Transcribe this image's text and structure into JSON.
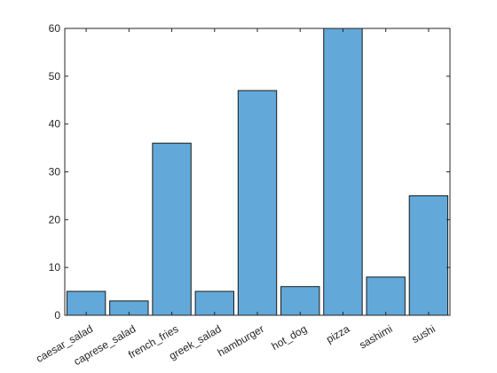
{
  "chart_data": {
    "type": "bar",
    "title": "",
    "xlabel": "",
    "ylabel": "",
    "categories": [
      "caesar_salad",
      "caprese_salad",
      "french_fries",
      "greek_salad",
      "hamburger",
      "hot_dog",
      "pizza",
      "sashimi",
      "sushi"
    ],
    "values": [
      5,
      3,
      36,
      5,
      47,
      6,
      60,
      8,
      25
    ],
    "ylim": [
      0,
      60
    ],
    "yticks": [
      "0",
      "10",
      "20",
      "30",
      "40",
      "50",
      "60"
    ],
    "grid": false,
    "legend": "none",
    "colors": {
      "bar": "#62a8d9",
      "bar_edge": "#1a1a1a",
      "axis": "#262626"
    }
  }
}
